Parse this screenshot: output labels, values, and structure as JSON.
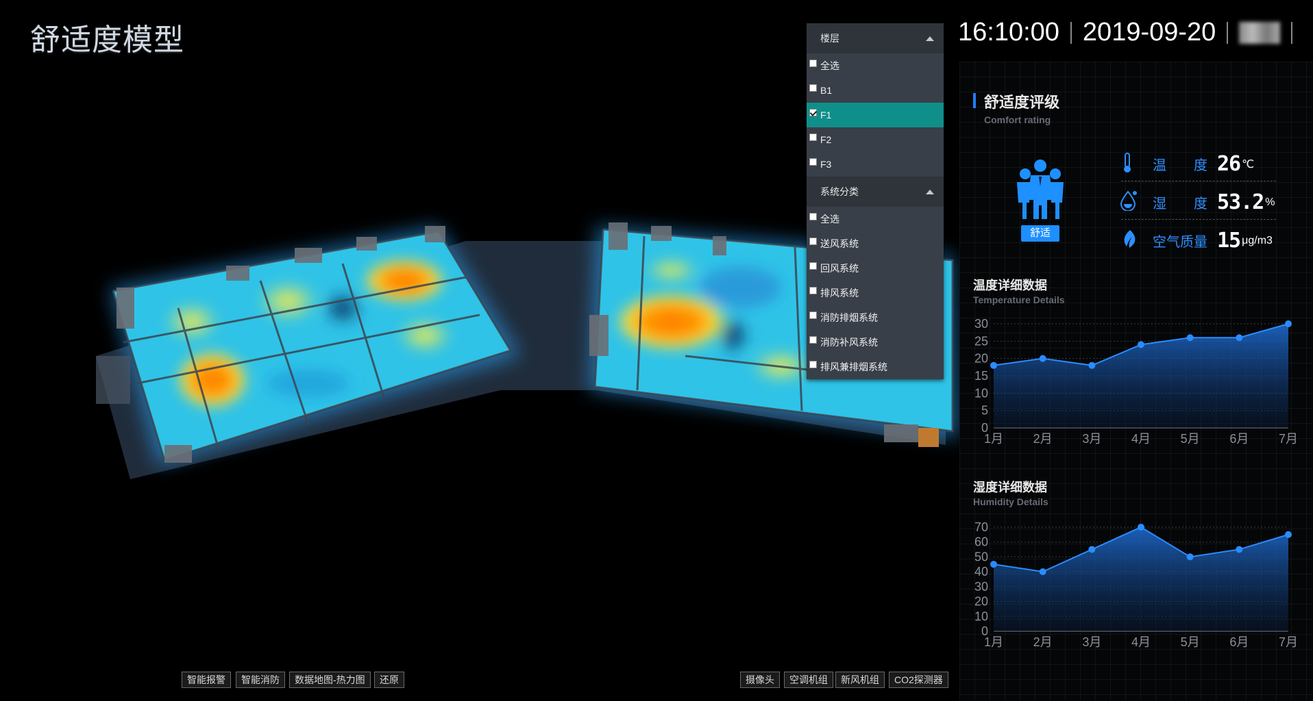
{
  "header": {
    "title": "舒适度模型",
    "time": "16:10:00",
    "date": "2019-09-20"
  },
  "floor_menu": {
    "label": "楼层",
    "items": [
      {
        "label": "全选",
        "checked": false
      },
      {
        "label": "B1",
        "checked": false
      },
      {
        "label": "F1",
        "checked": true
      },
      {
        "label": "F2",
        "checked": false
      },
      {
        "label": "F3",
        "checked": false
      }
    ]
  },
  "system_menu": {
    "label": "系统分类",
    "items": [
      {
        "label": "全选",
        "checked": false
      },
      {
        "label": "送风系统",
        "checked": false
      },
      {
        "label": "回风系统",
        "checked": false
      },
      {
        "label": "排风系统",
        "checked": false
      },
      {
        "label": "消防排烟系统",
        "checked": false
      },
      {
        "label": "消防补风系统",
        "checked": false
      },
      {
        "label": "排风兼排烟系统",
        "checked": false
      }
    ]
  },
  "comfort": {
    "title": "舒适度评级",
    "subtitle": "Comfort rating",
    "rating": "舒适",
    "temperature": {
      "label": "温　　度",
      "value": "26",
      "unit": "℃"
    },
    "humidity": {
      "label": "湿　　度",
      "value": "53.2",
      "unit": "%"
    },
    "air": {
      "label": "空气质量",
      "value": "15",
      "unit": "μg/m3"
    }
  },
  "temp_chart": {
    "title": "温度详细数据",
    "subtitle": "Temperature Details"
  },
  "hum_chart": {
    "title": "湿度详细数据",
    "subtitle": "Humidity Details"
  },
  "left_buttons": [
    "智能报警",
    "智能消防",
    "数据地图-热力图",
    "还原"
  ],
  "right_buttons": [
    "摄像头",
    "空调机组",
    "新风机组",
    "CO2探测器"
  ],
  "colors": {
    "accent": "#1e7fff",
    "selected": "#0f8f8a",
    "line": "#2a8cff"
  },
  "chart_data": [
    {
      "type": "area",
      "x": [
        "1月",
        "2月",
        "3月",
        "4月",
        "5月",
        "6月",
        "7月"
      ],
      "values": [
        18,
        20,
        18,
        24,
        26,
        26,
        30
      ],
      "ylim": [
        0,
        30
      ],
      "yticks": [
        0,
        5,
        10,
        15,
        20,
        25,
        30
      ],
      "grid": true
    },
    {
      "type": "area",
      "x": [
        "1月",
        "2月",
        "3月",
        "4月",
        "5月",
        "6月",
        "7月"
      ],
      "values": [
        45,
        40,
        55,
        70,
        50,
        55,
        65
      ],
      "ylim": [
        0,
        70
      ],
      "yticks": [
        0,
        10,
        20,
        30,
        40,
        50,
        60,
        70
      ],
      "grid": true
    }
  ]
}
